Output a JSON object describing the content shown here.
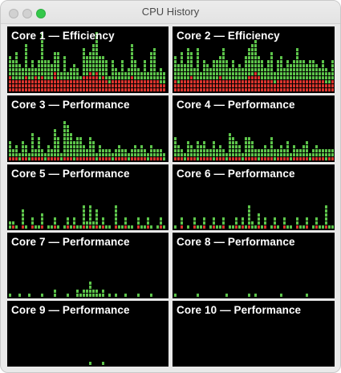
{
  "window": {
    "title": "CPU History",
    "traffic_lights": [
      {
        "name": "close-button",
        "color": "#d1d1d1"
      },
      {
        "name": "minimize-button",
        "color": "#d1d1d1"
      },
      {
        "name": "zoom-button",
        "color": "#34c84a"
      }
    ]
  },
  "colors": {
    "user": "#5cc34a",
    "system": "#d8352d",
    "background": "#000000"
  },
  "cores": [
    {
      "label": "Core 1 — Efficiency",
      "system": [
        0.25,
        0.2,
        0.2,
        0.2,
        0.2,
        0.25,
        0.2,
        0.2,
        0.25,
        0.2,
        0.25,
        0.2,
        0.2,
        0.2,
        0.35,
        0.2,
        0.2,
        0.2,
        0.2,
        0.2,
        0.2,
        0.2,
        0.2,
        0.25,
        0.25,
        0.35,
        0.25,
        0.3,
        0.2,
        0.25,
        0.2,
        0.15,
        0.2,
        0.2,
        0.2,
        0.2,
        0.2,
        0.2,
        0.25,
        0.2,
        0.2,
        0.2,
        0.2,
        0.2,
        0.2,
        0.2,
        0.2,
        0.15,
        0.15,
        0.15,
        0.2,
        0.15
      ],
      "user": [
        0.3,
        0.35,
        0.45,
        0.25,
        0.2,
        0.55,
        0.2,
        0.3,
        0.1,
        0.3,
        0.7,
        0.3,
        0.3,
        0.25,
        0.3,
        0.45,
        0.1,
        0.4,
        0.15,
        0.2,
        0.25,
        0.2,
        0.05,
        0.45,
        0.35,
        0.3,
        0.5,
        0.7,
        0.4,
        0.35,
        0.3,
        0.1,
        0.3,
        0.2,
        0.1,
        0.3,
        0.15,
        0.2,
        0.5,
        0.35,
        0.2,
        0.1,
        0.3,
        0.15,
        0.45,
        0.5,
        0.1,
        0.25,
        0.2,
        0.3,
        0.4,
        0.35
      ]
    },
    {
      "label": "Core 2 — Efficiency",
      "system": [
        0.2,
        0.15,
        0.2,
        0.2,
        0.2,
        0.25,
        0.2,
        0.2,
        0.2,
        0.2,
        0.2,
        0.2,
        0.2,
        0.2,
        0.25,
        0.2,
        0.2,
        0.2,
        0.2,
        0.2,
        0.2,
        0.2,
        0.2,
        0.25,
        0.25,
        0.3,
        0.25,
        0.2,
        0.2,
        0.2,
        0.2,
        0.15,
        0.2,
        0.2,
        0.2,
        0.2,
        0.2,
        0.2,
        0.2,
        0.2,
        0.2,
        0.2,
        0.2,
        0.2,
        0.2,
        0.2,
        0.2,
        0.15,
        0.15,
        0.2,
        0.2,
        0.15
      ],
      "user": [
        0.4,
        0.3,
        0.45,
        0.25,
        0.5,
        0.4,
        0.2,
        0.5,
        0.15,
        0.3,
        0.25,
        0.2,
        0.35,
        0.3,
        0.3,
        0.55,
        0.3,
        0.2,
        0.35,
        0.2,
        0.25,
        0.2,
        0.4,
        0.45,
        0.5,
        0.55,
        0.3,
        0.35,
        0.2,
        0.3,
        0.45,
        0.2,
        0.3,
        0.4,
        0.2,
        0.3,
        0.25,
        0.35,
        0.5,
        0.35,
        0.3,
        0.25,
        0.3,
        0.35,
        0.25,
        0.2,
        0.3,
        0.25,
        0.2,
        0.3,
        0.2,
        0.25
      ]
    },
    {
      "label": "Core 3 — Performance",
      "system": [
        0.05,
        0.04,
        0.04,
        0.0,
        0.04,
        0.04,
        0.0,
        0.04,
        0.04,
        0.05,
        0.04,
        0.0,
        0.04,
        0.04,
        0.04,
        0.04,
        0.0,
        0.04,
        0.04,
        0.04,
        0.0,
        0.04,
        0.04,
        0.04,
        0.04,
        0.04,
        0.04,
        0.0,
        0.04,
        0.04,
        0.04,
        0.04,
        0.0,
        0.04,
        0.04,
        0.04,
        0.04,
        0.0,
        0.04,
        0.04,
        0.04,
        0.04,
        0.04,
        0.0,
        0.04,
        0.04,
        0.04,
        0.04,
        0.0,
        0.04,
        0.04,
        0.04
      ],
      "user": [
        0.25,
        0.15,
        0.2,
        0.1,
        0.25,
        0.2,
        0.1,
        0.4,
        0.15,
        0.3,
        0.15,
        0.1,
        0.2,
        0.15,
        0.45,
        0.3,
        0.15,
        0.6,
        0.5,
        0.4,
        0.3,
        0.35,
        0.3,
        0.2,
        0.1,
        0.35,
        0.25,
        0.15,
        0.2,
        0.1,
        0.15,
        0.15,
        0.1,
        0.1,
        0.2,
        0.15,
        0.1,
        0.15,
        0.1,
        0.2,
        0.1,
        0.2,
        0.15,
        0.1,
        0.2,
        0.1,
        0.15,
        0.1,
        0.1,
        0.15,
        0.1,
        0.2
      ]
    },
    {
      "label": "Core 4 — Performance",
      "system": [
        0.05,
        0.04,
        0.04,
        0.0,
        0.04,
        0.04,
        0.04,
        0.0,
        0.04,
        0.04,
        0.04,
        0.04,
        0.0,
        0.04,
        0.04,
        0.04,
        0.0,
        0.04,
        0.04,
        0.04,
        0.04,
        0.0,
        0.04,
        0.04,
        0.04,
        0.04,
        0.0,
        0.04,
        0.04,
        0.04,
        0.04,
        0.0,
        0.04,
        0.04,
        0.04,
        0.04,
        0.0,
        0.04,
        0.04,
        0.04,
        0.04,
        0.04,
        0.0,
        0.04,
        0.04,
        0.04,
        0.04,
        0.0,
        0.04,
        0.04,
        0.04,
        0.05
      ],
      "user": [
        0.3,
        0.2,
        0.15,
        0.1,
        0.25,
        0.2,
        0.15,
        0.35,
        0.2,
        0.25,
        0.1,
        0.15,
        0.3,
        0.15,
        0.2,
        0.15,
        0.1,
        0.4,
        0.3,
        0.25,
        0.2,
        0.15,
        0.3,
        0.35,
        0.25,
        0.15,
        0.2,
        0.1,
        0.2,
        0.15,
        0.3,
        0.2,
        0.1,
        0.2,
        0.15,
        0.25,
        0.1,
        0.2,
        0.15,
        0.1,
        0.2,
        0.25,
        0.15,
        0.1,
        0.2,
        0.15,
        0.1,
        0.2,
        0.15,
        0.1,
        0.2,
        0.25
      ]
    },
    {
      "label": "Core 5 — Performance",
      "system": [
        0.0,
        0.04,
        0.0,
        0.0,
        0.04,
        0.0,
        0.0,
        0.04,
        0.0,
        0.0,
        0.04,
        0.0,
        0.0,
        0.0,
        0.04,
        0.0,
        0.0,
        0.0,
        0.04,
        0.0,
        0.04,
        0.0,
        0.0,
        0.04,
        0.0,
        0.04,
        0.0,
        0.04,
        0.0,
        0.04,
        0.0,
        0.0,
        0.0,
        0.04,
        0.0,
        0.0,
        0.04,
        0.0,
        0.0,
        0.0,
        0.04,
        0.0,
        0.0,
        0.04,
        0.0,
        0.0,
        0.0,
        0.04,
        0.0,
        0.0,
        0.04,
        0.04
      ],
      "user": [
        0.1,
        0.05,
        0.05,
        0.0,
        0.25,
        0.05,
        0.0,
        0.1,
        0.05,
        0.05,
        0.2,
        0.0,
        0.05,
        0.05,
        0.1,
        0.05,
        0.0,
        0.05,
        0.1,
        0.05,
        0.15,
        0.05,
        0.05,
        0.35,
        0.1,
        0.3,
        0.15,
        0.25,
        0.05,
        0.1,
        0.05,
        0.05,
        0.0,
        0.3,
        0.05,
        0.05,
        0.1,
        0.05,
        0.05,
        0.0,
        0.1,
        0.05,
        0.05,
        0.1,
        0.05,
        0.0,
        0.05,
        0.15,
        0.05,
        0.05,
        0.2,
        0.2
      ]
    },
    {
      "label": "Core 6 — Performance",
      "system": [
        0.0,
        0.0,
        0.04,
        0.0,
        0.0,
        0.0,
        0.04,
        0.0,
        0.0,
        0.04,
        0.0,
        0.0,
        0.04,
        0.0,
        0.0,
        0.04,
        0.0,
        0.0,
        0.0,
        0.04,
        0.0,
        0.04,
        0.0,
        0.04,
        0.0,
        0.0,
        0.04,
        0.0,
        0.04,
        0.0,
        0.0,
        0.04,
        0.0,
        0.0,
        0.04,
        0.0,
        0.0,
        0.0,
        0.04,
        0.0,
        0.0,
        0.04,
        0.0,
        0.0,
        0.04,
        0.0,
        0.0,
        0.04,
        0.0,
        0.0,
        0.04,
        0.04
      ],
      "user": [
        0.05,
        0.0,
        0.1,
        0.0,
        0.05,
        0.0,
        0.1,
        0.05,
        0.05,
        0.1,
        0.0,
        0.05,
        0.1,
        0.05,
        0.05,
        0.15,
        0.0,
        0.05,
        0.05,
        0.1,
        0.05,
        0.15,
        0.05,
        0.35,
        0.1,
        0.05,
        0.2,
        0.05,
        0.1,
        0.0,
        0.05,
        0.1,
        0.05,
        0.0,
        0.1,
        0.05,
        0.05,
        0.0,
        0.1,
        0.05,
        0.05,
        0.1,
        0.0,
        0.05,
        0.15,
        0.05,
        0.05,
        0.3,
        0.05,
        0.05,
        0.15,
        0.2
      ]
    },
    {
      "label": "Core 7 — Performance",
      "system": [
        0.0,
        0.0,
        0.0,
        0.0,
        0.0,
        0.0,
        0.0,
        0.0,
        0.0,
        0.0,
        0.0,
        0.0,
        0.0,
        0.0,
        0.0,
        0.0,
        0.0,
        0.0,
        0.0,
        0.0,
        0.0,
        0.0,
        0.0,
        0.0,
        0.0,
        0.0,
        0.0,
        0.0,
        0.0,
        0.0,
        0.0,
        0.0,
        0.0,
        0.0,
        0.0,
        0.0,
        0.0,
        0.0,
        0.0,
        0.0,
        0.0,
        0.0,
        0.0,
        0.0,
        0.0,
        0.0,
        0.0,
        0.0,
        0.0,
        0.0,
        0.0,
        0.0
      ],
      "user": [
        0.05,
        0.0,
        0.0,
        0.05,
        0.0,
        0.0,
        0.05,
        0.0,
        0.0,
        0.0,
        0.05,
        0.0,
        0.0,
        0.0,
        0.1,
        0.0,
        0.0,
        0.0,
        0.05,
        0.0,
        0.0,
        0.1,
        0.05,
        0.1,
        0.15,
        0.25,
        0.1,
        0.15,
        0.05,
        0.1,
        0.0,
        0.05,
        0.0,
        0.05,
        0.0,
        0.0,
        0.05,
        0.0,
        0.0,
        0.0,
        0.05,
        0.0,
        0.0,
        0.0,
        0.05,
        0.0,
        0.0,
        0.0,
        0.0,
        0.0,
        0.05,
        0.1
      ]
    },
    {
      "label": "Core 8 — Performance",
      "system": [
        0.0,
        0.0,
        0.0,
        0.0,
        0.0,
        0.0,
        0.0,
        0.0,
        0.0,
        0.0,
        0.0,
        0.0,
        0.0,
        0.0,
        0.0,
        0.0,
        0.0,
        0.0,
        0.0,
        0.0,
        0.0,
        0.0,
        0.0,
        0.0,
        0.0,
        0.0,
        0.0,
        0.0,
        0.0,
        0.0,
        0.0,
        0.0,
        0.0,
        0.0,
        0.0,
        0.0,
        0.0,
        0.0,
        0.0,
        0.0,
        0.0,
        0.0,
        0.0,
        0.0,
        0.0,
        0.0,
        0.0,
        0.0,
        0.0,
        0.0,
        0.0,
        0.0
      ],
      "user": [
        0.05,
        0.0,
        0.0,
        0.0,
        0.0,
        0.0,
        0.0,
        0.05,
        0.0,
        0.0,
        0.0,
        0.0,
        0.0,
        0.0,
        0.0,
        0.0,
        0.05,
        0.0,
        0.0,
        0.0,
        0.0,
        0.0,
        0.0,
        0.05,
        0.0,
        0.05,
        0.0,
        0.0,
        0.0,
        0.0,
        0.0,
        0.0,
        0.0,
        0.05,
        0.0,
        0.0,
        0.0,
        0.0,
        0.0,
        0.0,
        0.0,
        0.05,
        0.0,
        0.0,
        0.0,
        0.0,
        0.0,
        0.0,
        0.0,
        0.0,
        0.0,
        0.05
      ]
    },
    {
      "label": "Core 9 — Performance",
      "system": [
        0.0,
        0.0,
        0.0,
        0.0,
        0.0,
        0.0,
        0.0,
        0.0,
        0.0,
        0.0,
        0.0,
        0.0,
        0.0,
        0.0,
        0.0,
        0.0,
        0.0,
        0.0,
        0.0,
        0.0,
        0.0,
        0.0,
        0.0,
        0.0,
        0.0,
        0.0,
        0.0,
        0.0,
        0.0,
        0.0,
        0.0,
        0.0,
        0.0,
        0.0,
        0.0,
        0.0,
        0.0,
        0.0,
        0.0,
        0.0,
        0.0,
        0.0,
        0.0,
        0.0,
        0.0,
        0.0,
        0.0,
        0.0,
        0.0,
        0.0,
        0.0,
        0.0
      ],
      "user": [
        0.0,
        0.0,
        0.0,
        0.0,
        0.0,
        0.0,
        0.0,
        0.0,
        0.0,
        0.0,
        0.0,
        0.0,
        0.0,
        0.0,
        0.0,
        0.0,
        0.0,
        0.0,
        0.0,
        0.0,
        0.0,
        0.0,
        0.0,
        0.0,
        0.0,
        0.05,
        0.0,
        0.0,
        0.0,
        0.05,
        0.0,
        0.0,
        0.0,
        0.0,
        0.0,
        0.0,
        0.0,
        0.0,
        0.0,
        0.0,
        0.0,
        0.0,
        0.0,
        0.0,
        0.0,
        0.0,
        0.0,
        0.0,
        0.0,
        0.0,
        0.0,
        0.0
      ]
    },
    {
      "label": "Core 10 — Performance",
      "system": [
        0.0,
        0.0,
        0.0,
        0.0,
        0.0,
        0.0,
        0.0,
        0.0,
        0.0,
        0.0,
        0.0,
        0.0,
        0.0,
        0.0,
        0.0,
        0.0,
        0.0,
        0.0,
        0.0,
        0.0,
        0.0,
        0.0,
        0.0,
        0.0,
        0.0,
        0.0,
        0.0,
        0.0,
        0.0,
        0.0,
        0.0,
        0.0,
        0.0,
        0.0,
        0.0,
        0.0,
        0.0,
        0.0,
        0.0,
        0.0,
        0.0,
        0.0,
        0.0,
        0.0,
        0.0,
        0.0,
        0.0,
        0.0,
        0.0,
        0.0,
        0.0,
        0.0
      ],
      "user": [
        0.0,
        0.0,
        0.0,
        0.0,
        0.0,
        0.0,
        0.0,
        0.0,
        0.0,
        0.0,
        0.0,
        0.0,
        0.0,
        0.0,
        0.0,
        0.0,
        0.0,
        0.0,
        0.0,
        0.0,
        0.0,
        0.0,
        0.0,
        0.0,
        0.0,
        0.0,
        0.0,
        0.0,
        0.0,
        0.0,
        0.0,
        0.0,
        0.0,
        0.0,
        0.0,
        0.0,
        0.0,
        0.0,
        0.0,
        0.0,
        0.0,
        0.0,
        0.0,
        0.0,
        0.0,
        0.0,
        0.0,
        0.0,
        0.0,
        0.0,
        0.0,
        0.0
      ]
    }
  ]
}
